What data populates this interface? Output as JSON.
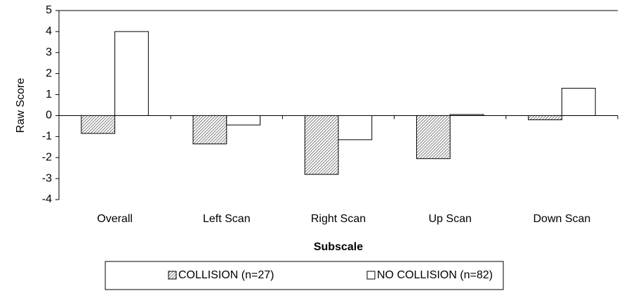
{
  "chart_data": {
    "type": "bar",
    "xlabel": "Subscale",
    "ylabel": "Raw Score",
    "categories": [
      "Overall",
      "Left Scan",
      "Right Scan",
      "Up Scan",
      "Down Scan"
    ],
    "series": [
      {
        "name": "COLLISION (n=27)",
        "color": "#808080",
        "values": [
          -0.85,
          -1.35,
          -2.8,
          -2.05,
          -0.2
        ]
      },
      {
        "name": "NO COLLISION (n=82)",
        "color": "#ffffff",
        "values": [
          4.0,
          -0.45,
          -1.15,
          0.05,
          1.3
        ]
      }
    ],
    "ylim": [
      -4,
      5
    ],
    "yticks": [
      -4,
      -3,
      -2,
      -1,
      0,
      1,
      2,
      3,
      4,
      5
    ],
    "grid": false,
    "legend": "bottom"
  }
}
